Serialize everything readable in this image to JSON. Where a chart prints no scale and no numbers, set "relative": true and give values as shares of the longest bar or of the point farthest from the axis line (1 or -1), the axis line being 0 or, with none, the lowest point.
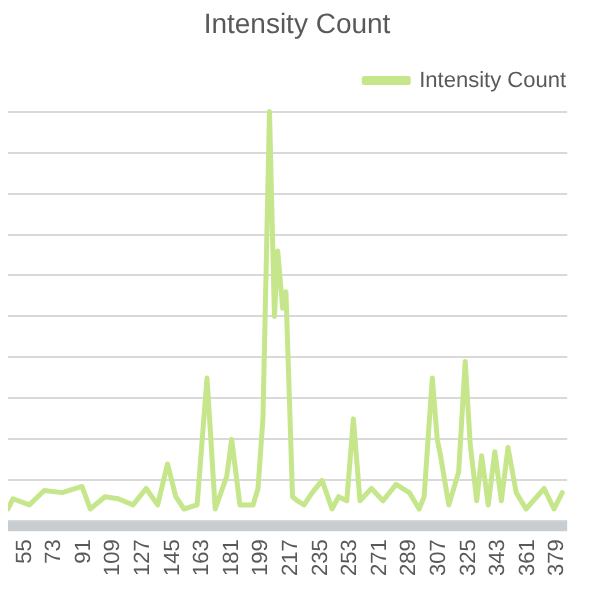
{
  "chart_data": {
    "type": "line",
    "title": "Intensity Count",
    "relative": true,
    "grid": "y",
    "legend": "top right",
    "marker": "none",
    "line_style": "solid",
    "xlim": [
      45,
      385
    ],
    "xticks": [
      55,
      73,
      91,
      109,
      127,
      145,
      163,
      181,
      199,
      217,
      235,
      253,
      271,
      289,
      307,
      325,
      343,
      361,
      379
    ],
    "series": [
      {
        "name": "Intensity Count",
        "color": "#c6e68c",
        "x": [
          45,
          48,
          58,
          67,
          78,
          90,
          95,
          104,
          112,
          121,
          129,
          136,
          142,
          147,
          152,
          160,
          166,
          171,
          178,
          181,
          186,
          194,
          197,
          200,
          204,
          207,
          209,
          212,
          214,
          218,
          221,
          225,
          230,
          236,
          242,
          246,
          251,
          255,
          259,
          266,
          273,
          281,
          289,
          295,
          298,
          303,
          306,
          308,
          313,
          319,
          323,
          326,
          330,
          333,
          337,
          341,
          345,
          349,
          354,
          360,
          371,
          377,
          382
        ],
        "values": [
          0.03,
          0.055,
          0.04,
          0.075,
          0.07,
          0.085,
          0.03,
          0.06,
          0.055,
          0.04,
          0.08,
          0.04,
          0.14,
          0.06,
          0.03,
          0.04,
          0.35,
          0.03,
          0.11,
          0.2,
          0.04,
          0.04,
          0.08,
          0.25,
          1.0,
          0.5,
          0.66,
          0.52,
          0.56,
          0.06,
          0.05,
          0.04,
          0.07,
          0.1,
          0.03,
          0.06,
          0.05,
          0.25,
          0.05,
          0.08,
          0.05,
          0.09,
          0.07,
          0.03,
          0.06,
          0.35,
          0.2,
          0.16,
          0.04,
          0.12,
          0.39,
          0.19,
          0.05,
          0.16,
          0.04,
          0.17,
          0.05,
          0.18,
          0.07,
          0.03,
          0.08,
          0.03,
          0.07
        ]
      }
    ]
  }
}
